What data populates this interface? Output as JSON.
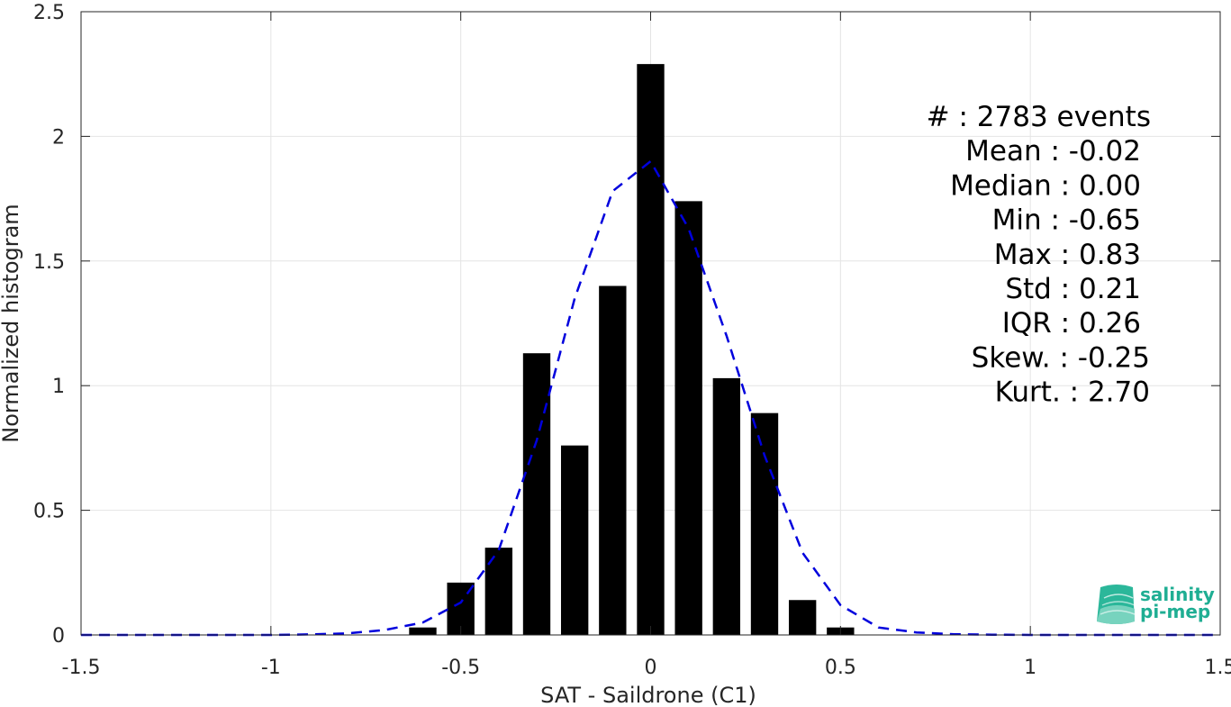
{
  "chart_data": {
    "type": "bar",
    "xlabel": "SAT - Saildrone (C1)",
    "ylabel": "Normalized histogram",
    "xlim": [
      -1.5,
      1.5
    ],
    "ylim": [
      0,
      2.5
    ],
    "x_ticks": [
      -1.5,
      -1,
      -0.5,
      0,
      0.5,
      1,
      1.5
    ],
    "x_tick_labels": [
      "-1.5",
      "-1",
      "-0.5",
      "0",
      "0.5",
      "1",
      "1.5"
    ],
    "y_ticks": [
      0,
      0.5,
      1,
      1.5,
      2,
      2.5
    ],
    "y_tick_labels": [
      "0",
      "0.5",
      "1",
      "1.5",
      "2",
      "2.5"
    ],
    "grid": true,
    "bins": {
      "x": [
        -0.6,
        -0.5,
        -0.4,
        -0.3,
        -0.2,
        -0.1,
        0.0,
        0.1,
        0.2,
        0.3,
        0.4,
        0.5
      ],
      "values": [
        0.03,
        0.21,
        0.35,
        1.13,
        0.76,
        1.4,
        2.29,
        1.74,
        1.03,
        0.89,
        0.14,
        0.03
      ],
      "color": "#000000"
    },
    "fit_curve": {
      "style": "dashed",
      "color": "#0000dd",
      "x": [
        -1.5,
        -1.4,
        -1.3,
        -1.2,
        -1.1,
        -1.0,
        -0.9,
        -0.8,
        -0.7,
        -0.6,
        -0.5,
        -0.4,
        -0.3,
        -0.2,
        -0.1,
        0.0,
        0.1,
        0.2,
        0.3,
        0.4,
        0.5,
        0.6,
        0.7,
        0.8,
        0.9,
        1.0,
        1.1,
        1.2,
        1.3,
        1.4,
        1.5
      ],
      "y": [
        0,
        0,
        0,
        0,
        0,
        0,
        0.002,
        0.006,
        0.02,
        0.05,
        0.13,
        0.34,
        0.78,
        1.35,
        1.78,
        1.9,
        1.63,
        1.2,
        0.72,
        0.33,
        0.12,
        0.03,
        0.01,
        0.003,
        0.001,
        0,
        0,
        0,
        0,
        0,
        0
      ]
    },
    "stats": [
      "#  : 2783 events",
      "Mean : -0.02",
      "Median : 0.00",
      "Min : -0.65",
      "Max : 0.83",
      "Std : 0.21",
      "IQR : 0.26",
      "Skew. : -0.25",
      "Kurt. : 2.70"
    ]
  },
  "logo": {
    "line1": "salinity",
    "line2": "pi-mep",
    "color": "#1fae93"
  }
}
